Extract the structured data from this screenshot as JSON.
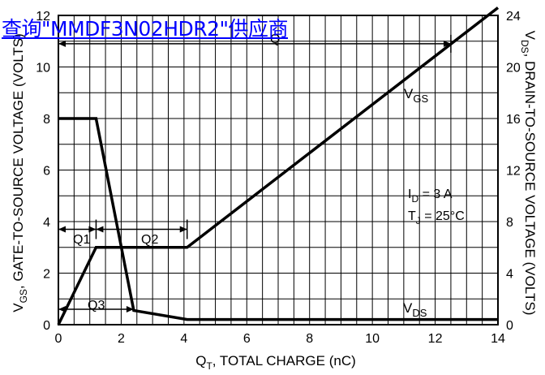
{
  "overlay_link": {
    "text": "查询\"MMDF3N02HDR2\"供应商"
  },
  "chart_data": {
    "type": "line",
    "xlabel_main": "Q",
    "xlabel_sub": "T",
    "xlabel_rest": ", TOTAL CHARGE (nC)",
    "ylabel_left_main": "V",
    "ylabel_left_sub": "GS",
    "ylabel_left_rest": ", GATE-TO-SOURCE VOLTAGE (VOLTS)",
    "ylabel_right_main": "V",
    "ylabel_right_sub": "DS",
    "ylabel_right_rest": ", DRAIN-TO-SOURCE VOLTAGE (VOLTS)",
    "xlim": [
      0,
      14
    ],
    "ylim_left": [
      0,
      12
    ],
    "ylim_right": [
      0,
      24
    ],
    "x_ticks": [
      "0",
      "2",
      "4",
      "6",
      "8",
      "10",
      "12",
      "14"
    ],
    "y_left_ticks": [
      "0",
      "2",
      "4",
      "6",
      "8",
      "10",
      "12"
    ],
    "y_right_ticks": [
      "0",
      "4",
      "8",
      "12",
      "16",
      "20",
      "24"
    ],
    "grid": true,
    "series": [
      {
        "name": "VGS",
        "label_main": "V",
        "label_sub": "GS",
        "axis": "left",
        "x": [
          0,
          1.2,
          4.1,
          14
        ],
        "y": [
          0,
          3.0,
          3.0,
          12.3
        ]
      },
      {
        "name": "VDS",
        "label_main": "V",
        "label_sub": "DS",
        "axis": "right",
        "x": [
          0,
          1.2,
          2.4,
          4.1,
          14
        ],
        "y": [
          16,
          16,
          1.1,
          0.4,
          0.4
        ]
      }
    ],
    "annotations": {
      "conditions": {
        "id_main": "I",
        "id_sub": "D",
        "id_rest": " = 3 A",
        "tj_main": "T",
        "tj_sub": "J",
        "tj_rest": " = 25°C"
      },
      "q1": "Q1",
      "q2": "Q2",
      "q3": "Q3",
      "qt_sub": "Q",
      "markers": {
        "q1_x": 1.2,
        "q2_x": 4.1,
        "q3_x": 2.4,
        "qt_x": 12.5
      },
      "arrow_levels": {
        "q1_q2_y": 3.7,
        "q3_y": 0.6,
        "qt_y": 10.9
      }
    }
  }
}
